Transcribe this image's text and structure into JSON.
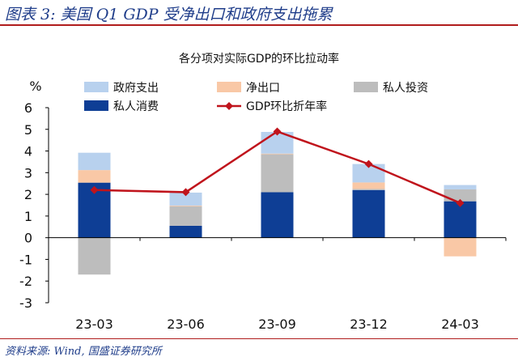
{
  "header": {
    "title": "图表 3:  美国 Q1 GDP 受净出口和政府支出拖累"
  },
  "chart_data": {
    "type": "bar",
    "stacked": true,
    "title": "各分项对实际GDP的环比拉动率",
    "ylabel": "%",
    "ylim": [
      -3,
      6
    ],
    "yticks": [
      -3,
      -2,
      -1,
      0,
      1,
      2,
      3,
      4,
      5,
      6
    ],
    "grid": false,
    "legend_position": "top",
    "categories": [
      "23-03",
      "23-06",
      "23-09",
      "23-12",
      "24-03"
    ],
    "series": [
      {
        "name": "私人消费",
        "kind": "bar",
        "color": "#0e3e95",
        "values": [
          2.54,
          0.55,
          2.1,
          2.2,
          1.68
        ]
      },
      {
        "name": "私人投资",
        "kind": "bar",
        "color": "#bdbdbd",
        "values": [
          -1.7,
          0.9,
          1.75,
          0.05,
          0.55
        ]
      },
      {
        "name": "净出口",
        "kind": "bar",
        "color": "#f9c8a6",
        "values": [
          0.58,
          0.03,
          0.03,
          0.3,
          -0.86
        ]
      },
      {
        "name": "政府支出",
        "kind": "bar",
        "color": "#b8d1ee",
        "values": [
          0.8,
          0.6,
          1.0,
          0.85,
          0.2
        ]
      },
      {
        "name": "GDP环比折年率",
        "kind": "line",
        "color": "#c0141c",
        "values": [
          2.2,
          2.1,
          4.9,
          3.4,
          1.6
        ]
      }
    ],
    "legend_order": [
      "政府支出",
      "净出口",
      "私人投资",
      "私人消费",
      "GDP环比折年率"
    ]
  },
  "footer": {
    "source": "资料来源:  Wind,  国盛证券研究所"
  }
}
